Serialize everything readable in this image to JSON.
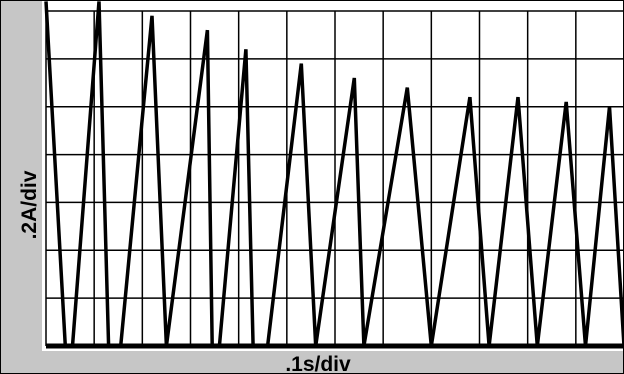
{
  "chart_data": {
    "type": "line",
    "title": "",
    "xlabel": ".1s/div",
    "ylabel": ".2A/div",
    "grid": true,
    "xlim": [
      0,
      12
    ],
    "ylim": [
      0,
      7
    ],
    "series": [
      {
        "x": [
          0,
          0.4,
          0.55,
          1.1,
          1.3,
          1.55,
          2.2,
          2.5,
          3.35,
          3.45,
          3.6,
          4.15,
          4.3,
          4.6,
          5.3,
          5.6,
          6.4,
          6.6,
          7.5,
          8.0,
          8.8,
          9.2,
          9.8,
          10.2,
          10.8,
          11.2,
          11.7,
          12.0
        ],
        "y": [
          7.2,
          0,
          0,
          7.2,
          0,
          0,
          6.9,
          0,
          6.6,
          0,
          0,
          6.2,
          0,
          0,
          5.9,
          0,
          5.6,
          0,
          5.4,
          0,
          5.2,
          0,
          5.2,
          0,
          5.1,
          0,
          5.0,
          0
        ]
      }
    ]
  },
  "colors": {
    "background": "#ffffff",
    "side_bands": "#c6c6c6",
    "grid": "#000000",
    "trace": "#000000"
  }
}
